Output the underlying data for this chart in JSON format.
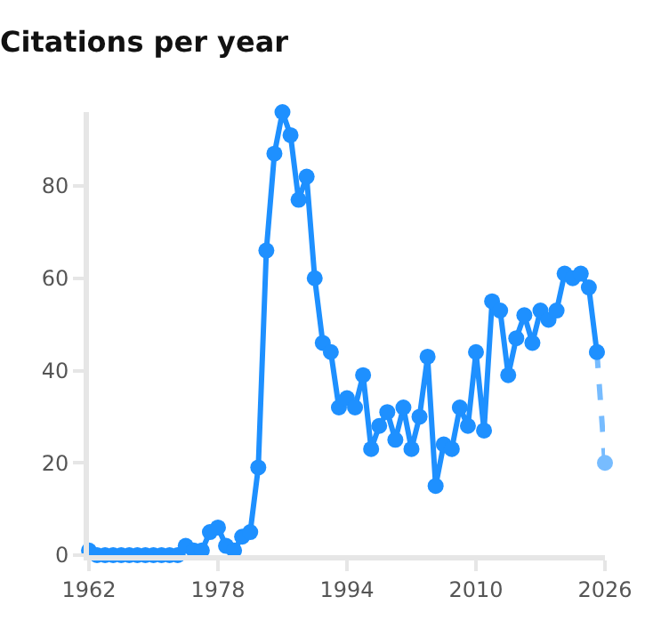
{
  "chart_data": {
    "type": "line",
    "title": "Citations per year",
    "xlim": [
      1962,
      2026
    ],
    "xticks": [
      1962,
      1978,
      1994,
      2010,
      2026
    ],
    "ylim": [
      0,
      96
    ],
    "yticks": [
      0,
      20,
      40,
      60,
      80
    ],
    "marker": "circle",
    "series": [
      {
        "color": "#1e90ff",
        "line_style": "solid",
        "x": [
          1962,
          1963,
          1964,
          1965,
          1966,
          1967,
          1968,
          1969,
          1970,
          1971,
          1972,
          1973,
          1974,
          1975,
          1976,
          1977,
          1978,
          1979,
          1980,
          1981,
          1982,
          1983,
          1984,
          1985,
          1986,
          1987,
          1988,
          1989,
          1990,
          1991,
          1992,
          1993,
          1994,
          1995,
          1996,
          1997,
          1998,
          1999,
          2000,
          2001,
          2002,
          2003,
          2004,
          2005,
          2006,
          2007,
          2008,
          2009,
          2010,
          2011,
          2012,
          2013,
          2014,
          2015,
          2016,
          2017,
          2018,
          2019,
          2020,
          2021,
          2022,
          2023,
          2024,
          2025
        ],
        "values": [
          1,
          0,
          0,
          0,
          0,
          0,
          0,
          0,
          0,
          0,
          0,
          0,
          2,
          1,
          1,
          5,
          6,
          2,
          1,
          4,
          5,
          19,
          66,
          87,
          96,
          91,
          77,
          82,
          60,
          46,
          44,
          32,
          34,
          32,
          39,
          23,
          28,
          31,
          25,
          32,
          23,
          30,
          43,
          15,
          24,
          23,
          32,
          28,
          44,
          27,
          55,
          53,
          39,
          47,
          52,
          46,
          53,
          51,
          53,
          61,
          60,
          61,
          58,
          44
        ]
      },
      {
        "color": "#1e90ff",
        "line_style": "dashed",
        "x": [
          2025,
          2026
        ],
        "values": [
          44,
          20
        ]
      }
    ]
  }
}
